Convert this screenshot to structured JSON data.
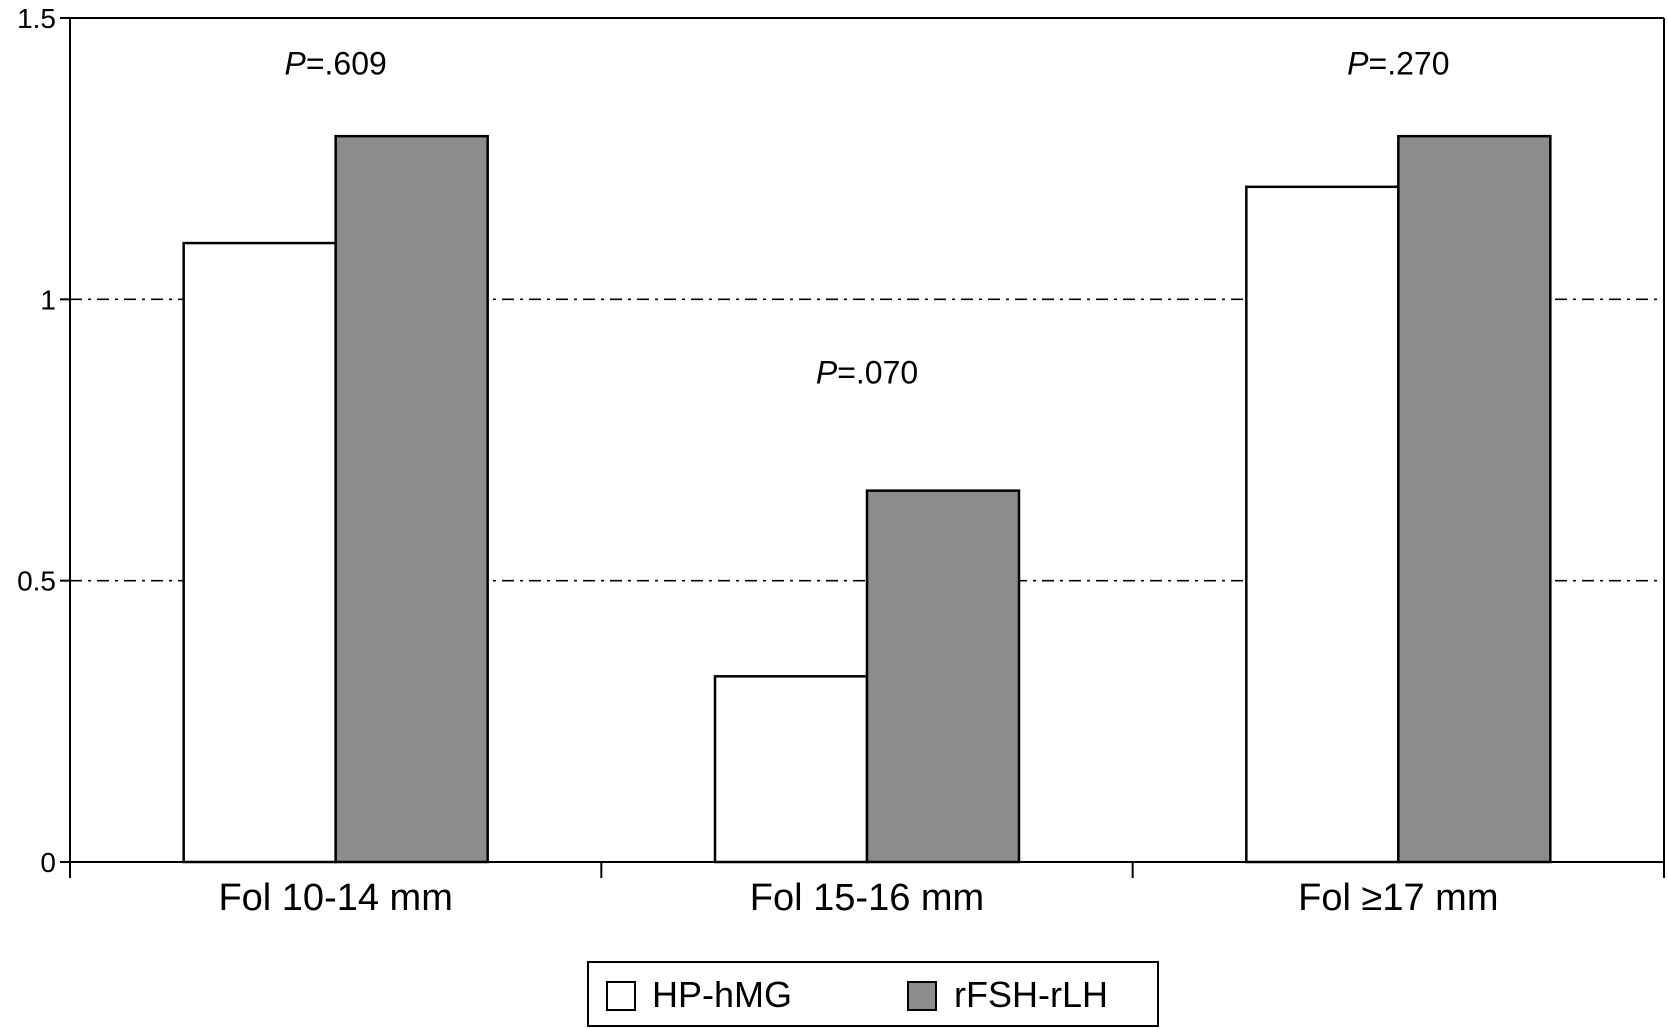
{
  "chart_data": {
    "type": "bar",
    "categories": [
      "Fol 10-14 mm",
      "Fol 15-16 mm",
      "Fol ≥17 mm"
    ],
    "series": [
      {
        "name": "HP-hMG",
        "color": "#ffffff",
        "values": [
          1.1,
          0.33,
          1.2
        ]
      },
      {
        "name": "rFSH-rLH",
        "color": "#8c8c8c",
        "values": [
          1.29,
          0.66,
          1.29
        ]
      }
    ],
    "annotations": [
      {
        "prefix": "P",
        "suffix": "=.609",
        "category": 0,
        "y": 1.4
      },
      {
        "prefix": "P",
        "suffix": "=.070",
        "category": 1,
        "y": 0.85
      },
      {
        "prefix": "P",
        "suffix": "=.270",
        "category": 2,
        "y": 1.4
      }
    ],
    "yticks": [
      {
        "value": 0,
        "label": "0"
      },
      {
        "value": 0.5,
        "label": "0.5"
      },
      {
        "value": 1,
        "label": "1"
      },
      {
        "value": 1.5,
        "label": "1.5"
      }
    ],
    "reference_lines": [
      0.5,
      1
    ],
    "ylim": [
      0,
      1.5
    ],
    "xlabel": "",
    "ylabel": "",
    "title": "",
    "legend_position": "bottom-center"
  }
}
